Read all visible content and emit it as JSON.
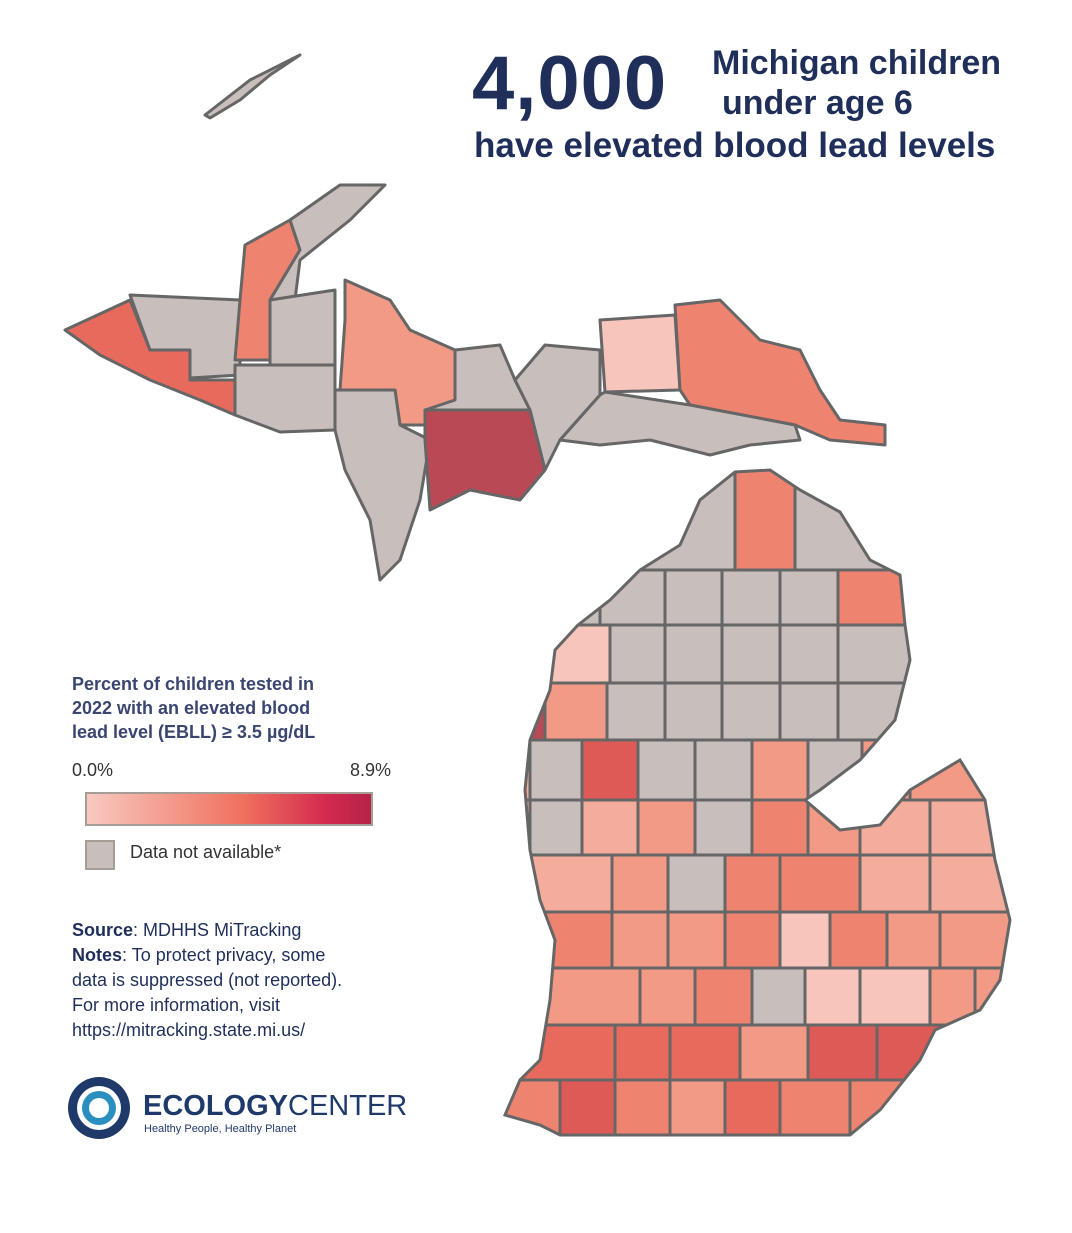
{
  "header": {
    "number": "4,000",
    "line1": "Michigan children",
    "line2": "under age 6",
    "line3": "have elevated blood lead levels"
  },
  "legend": {
    "title_lines": [
      "Percent of children tested in",
      "2022 with an elevated blood",
      "lead level (EBLL) ≥ 3.5 µg/dL"
    ],
    "min_label": "0.0%",
    "max_label": "8.9%",
    "na_label": "Data not available*"
  },
  "notes": {
    "source_label": "Source",
    "source_text": ": MDHHS MiTracking",
    "notes_label": "Notes",
    "notes_lines": [
      ": To protect privacy, some",
      "data is suppressed (not reported).",
      "For more information, visit",
      "https://mitracking.state.mi.us/"
    ]
  },
  "logo": {
    "word1": "ECOLOGY",
    "word2": "CENTER",
    "tagline": "Healthy People, Healthy Planet"
  }
}
